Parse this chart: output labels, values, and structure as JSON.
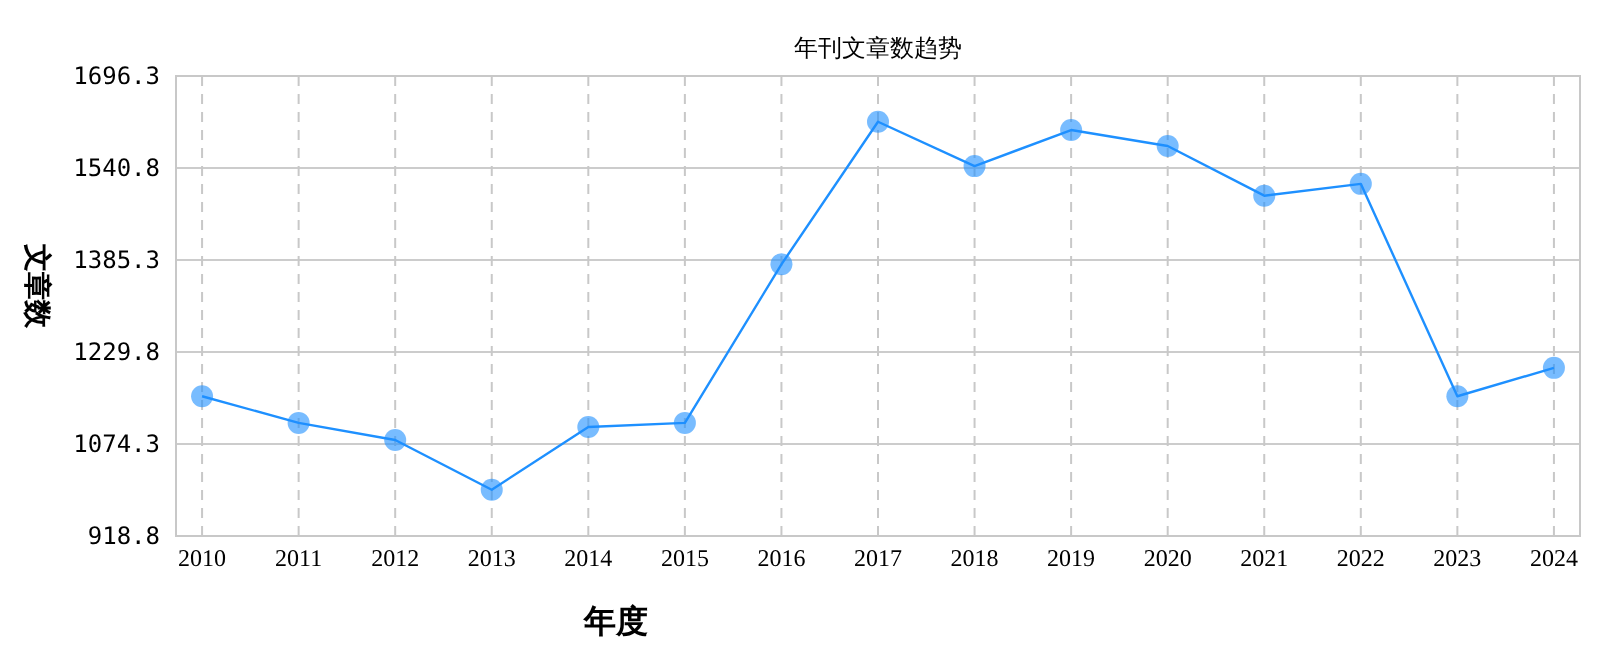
{
  "chart_data": {
    "type": "line",
    "title": "年刊文章数趋势",
    "xlabel": "年度",
    "ylabel": "文章数",
    "categories": [
      "2010",
      "2011",
      "2012",
      "2013",
      "2014",
      "2015",
      "2016",
      "2017",
      "2018",
      "2019",
      "2020",
      "2021",
      "2022",
      "2023",
      "2024"
    ],
    "series": [
      {
        "color": "#1e90ff",
        "values": [
          1155,
          1110,
          1081,
          997,
          1103,
          1110,
          1378,
          1619,
          1544,
          1605,
          1578,
          1494,
          1514,
          1155,
          1203
        ]
      }
    ],
    "ylim": [
      918.8,
      1696.3
    ],
    "yticks": [
      918.8,
      1074.3,
      1229.8,
      1385.3,
      1540.8,
      1696.3
    ],
    "grid": true,
    "marker": "circle",
    "line_style": "solid"
  }
}
